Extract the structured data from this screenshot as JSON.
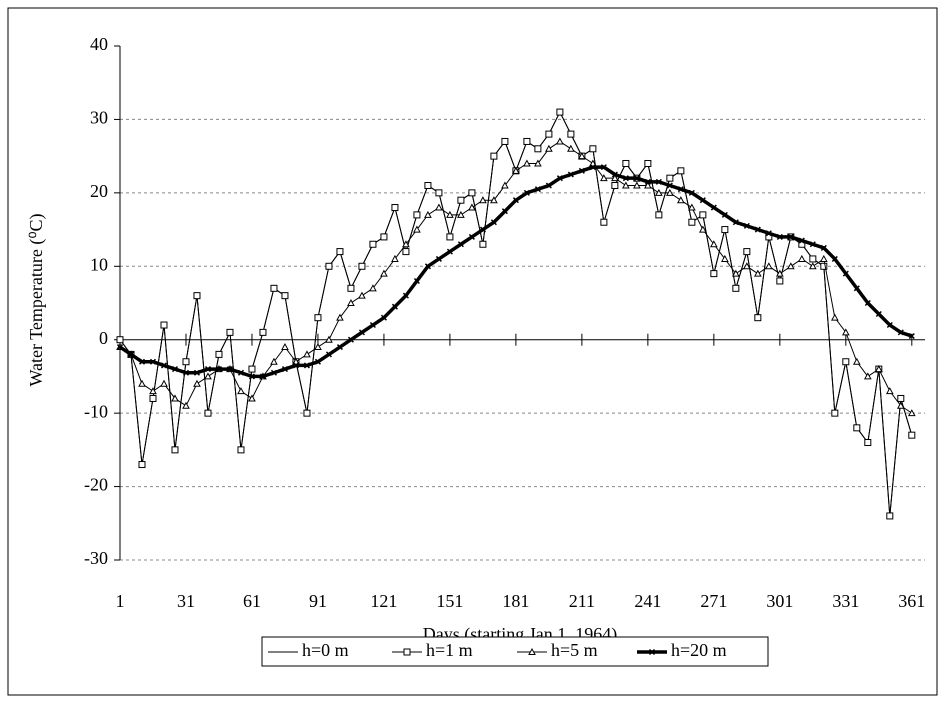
{
  "chart_data": {
    "type": "line",
    "xlabel": "Days (starting Jan 1, 1964)",
    "ylabel": "Water Temperature (⁰C)",
    "x": [
      1,
      6,
      11,
      16,
      21,
      26,
      31,
      36,
      41,
      46,
      51,
      56,
      61,
      66,
      71,
      76,
      81,
      86,
      91,
      96,
      101,
      106,
      111,
      116,
      121,
      126,
      131,
      136,
      141,
      146,
      151,
      156,
      161,
      166,
      171,
      176,
      181,
      186,
      191,
      196,
      201,
      206,
      211,
      216,
      221,
      226,
      231,
      236,
      241,
      246,
      251,
      256,
      261,
      266,
      271,
      276,
      281,
      286,
      291,
      296,
      301,
      306,
      311,
      316,
      321,
      326,
      331,
      336,
      341,
      346,
      351,
      356,
      361
    ],
    "series": [
      {
        "name": "h=0 m",
        "color": "#000000",
        "marker": "none",
        "width": 1,
        "values": [
          0,
          -2,
          -17,
          -8,
          2,
          -15,
          -3,
          6,
          -10,
          -2,
          1,
          -15,
          -4,
          1,
          7,
          6,
          -3,
          -10,
          3,
          10,
          12,
          7,
          10,
          13,
          14,
          18,
          12,
          17,
          21,
          20,
          14,
          19,
          20,
          13,
          25,
          27,
          23,
          27,
          26,
          28,
          31,
          28,
          25,
          26,
          16,
          21,
          24,
          22,
          24,
          17,
          22,
          23,
          16,
          17,
          9,
          15,
          7,
          12,
          3,
          14,
          8,
          14,
          13,
          11,
          10,
          -10,
          -3,
          -12,
          -14,
          -4,
          -24,
          -8,
          -13
        ]
      },
      {
        "name": "h=1 m",
        "color": "#000000",
        "marker": "square",
        "width": 1,
        "values": [
          0,
          -2,
          -17,
          -8,
          2,
          -15,
          -3,
          6,
          -10,
          -2,
          1,
          -15,
          -4,
          1,
          7,
          6,
          -3,
          -10,
          3,
          10,
          12,
          7,
          10,
          13,
          14,
          18,
          12,
          17,
          21,
          20,
          14,
          19,
          20,
          13,
          25,
          27,
          23,
          27,
          26,
          28,
          31,
          28,
          25,
          26,
          16,
          21,
          24,
          22,
          24,
          17,
          22,
          23,
          16,
          17,
          9,
          15,
          7,
          12,
          3,
          14,
          8,
          14,
          13,
          11,
          10,
          -10,
          -3,
          -12,
          -14,
          -4,
          -24,
          -8,
          -13
        ]
      },
      {
        "name": "h=5 m",
        "color": "#000000",
        "marker": "triangle",
        "width": 1,
        "values": [
          -1,
          -2,
          -6,
          -7,
          -6,
          -8,
          -9,
          -6,
          -5,
          -4,
          -4,
          -7,
          -8,
          -5,
          -3,
          -1,
          -3,
          -2,
          -1,
          0,
          3,
          5,
          6,
          7,
          9,
          11,
          13,
          15,
          17,
          18,
          17,
          17,
          18,
          19,
          19,
          21,
          23,
          24,
          24,
          26,
          27,
          26,
          25,
          24,
          22,
          22,
          21,
          21,
          21,
          20,
          20,
          19,
          18,
          15,
          13,
          11,
          9,
          10,
          9,
          10,
          9,
          10,
          11,
          10,
          11,
          3,
          1,
          -3,
          -5,
          -4,
          -7,
          -9,
          -10
        ]
      },
      {
        "name": "h=20 m",
        "color": "#000000",
        "marker": "cross",
        "width": 3.5,
        "values": [
          -1,
          -2,
          -3,
          -3,
          -3.5,
          -4,
          -4.5,
          -4.5,
          -4,
          -4,
          -4,
          -4.5,
          -5,
          -5,
          -4.5,
          -4,
          -3.5,
          -3.5,
          -3,
          -2,
          -1,
          0,
          1,
          2,
          3,
          4.5,
          6,
          8,
          10,
          11,
          12,
          13,
          14,
          15,
          16,
          17.5,
          19,
          20,
          20.5,
          21,
          22,
          22.5,
          23,
          23.5,
          23.5,
          22.5,
          22,
          22,
          21.5,
          21.5,
          21,
          20.5,
          20,
          19,
          18,
          17,
          16,
          15.5,
          15,
          14.5,
          14,
          14,
          13.5,
          13,
          12.5,
          11,
          9,
          7,
          5,
          3.5,
          2,
          1,
          0.5
        ]
      }
    ],
    "xlim": [
      1,
      367
    ],
    "xticks": [
      1,
      31,
      61,
      91,
      121,
      151,
      181,
      211,
      241,
      271,
      301,
      331,
      361
    ],
    "ylim": [
      -30,
      40
    ],
    "yticks": [
      -30,
      -20,
      -10,
      0,
      10,
      20,
      30,
      40
    ],
    "grid": true,
    "legend": "bottom"
  }
}
